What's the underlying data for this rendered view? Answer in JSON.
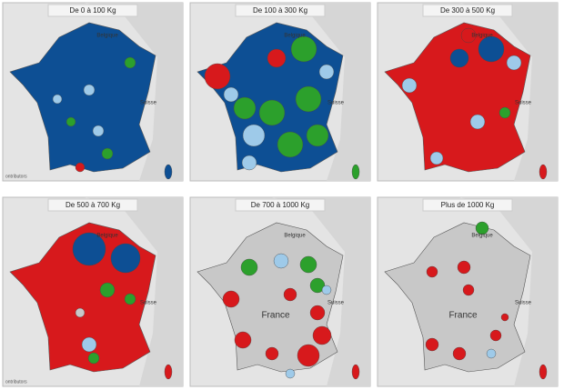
{
  "panels": [
    {
      "title": "De 0 à 100 Kg",
      "labels": [
        "Belgique",
        "Suisse"
      ],
      "attribution": "ontributors"
    },
    {
      "title": "De 100 à 300 Kg",
      "labels": [
        "Belgique",
        "Suisse"
      ]
    },
    {
      "title": "De 300 à 500 Kg",
      "labels": [
        "Belgique",
        "Suisse"
      ]
    },
    {
      "title": "De 500 à 700 Kg",
      "labels": [
        "Belgique",
        "Suisse"
      ],
      "attribution": "ontributors"
    },
    {
      "title": "De 700 à 1000 Kg",
      "labels": [
        "Belgique",
        "Suisse",
        "France"
      ]
    },
    {
      "title": "Plus de 1000 Kg",
      "labels": [
        "Belgique",
        "Suisse",
        "France"
      ]
    }
  ]
}
